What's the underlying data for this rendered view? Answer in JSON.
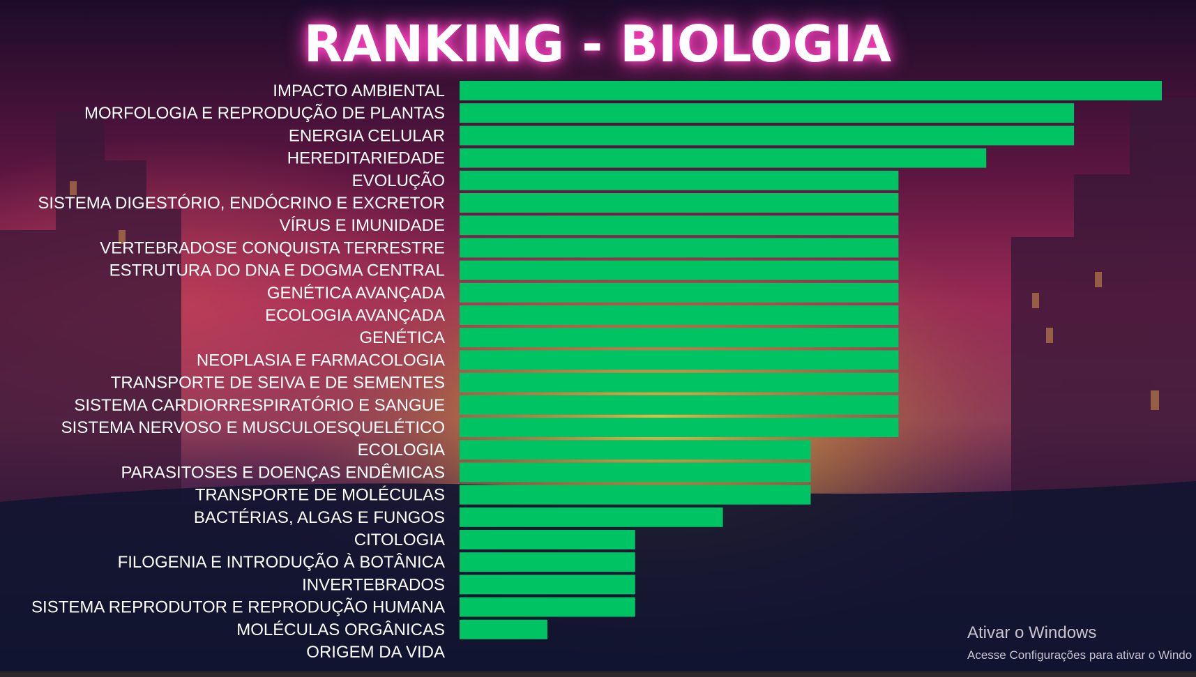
{
  "chart_data": {
    "type": "bar",
    "orientation": "horizontal",
    "title": "RANKING - BIOLOGIA",
    "categories": [
      "IMPACTO AMBIENTAL",
      "MORFOLOGIA E REPRODUÇÃO DE PLANTAS",
      "ENERGIA CELULAR",
      "HEREDITARIEDADE",
      "EVOLUÇÃO",
      "SISTEMA DIGESTÓRIO, ENDÓCRINO E EXCRETOR",
      "VÍRUS E IMUNIDADE",
      "VERTEBRADOSE CONQUISTA TERRESTRE",
      "ESTRUTURA DO DNA E DOGMA CENTRAL",
      "GENÉTICA AVANÇADA",
      "ECOLOGIA AVANÇADA",
      "GENÉTICA",
      "NEOPLASIA E FARMACOLOGIA",
      "TRANSPORTE DE SEIVA E DE SEMENTES",
      "SISTEMA CARDIORRESPIRATÓRIO E SANGUE",
      "SISTEMA NERVOSO E MUSCULOESQUELÉTICO",
      "ECOLOGIA",
      "PARASITOSES E DOENÇAS ENDÊMICAS",
      "TRANSPORTE DE MOLÉCULAS",
      "BACTÉRIAS, ALGAS E FUNGOS",
      "CITOLOGIA",
      "FILOGENIA E INTRODUÇÃO À BOTÂNICA",
      "INVERTEBRADOS",
      "SISTEMA REPRODUTOR E REPRODUÇÃO HUMANA",
      "MOLÉCULAS ORGÂNICAS",
      "ORIGEM DA VIDA"
    ],
    "values": [
      8,
      7,
      7,
      6,
      5,
      5,
      5,
      5,
      5,
      5,
      5,
      5,
      5,
      5,
      5,
      5,
      4,
      4,
      4,
      3,
      2,
      2,
      2,
      2,
      1,
      0
    ],
    "xlim": [
      0,
      8
    ],
    "grid": false,
    "legend": "none",
    "bar_color": "#00c463"
  },
  "watermark": {
    "title": "Ativar o Windows",
    "subtitle": "Acesse Configurações para ativar o Windo"
  },
  "colors": {
    "title_glow": "#ff3fbf",
    "background_top": "#2a0f3a",
    "background_mid": "#7a1f4a",
    "background_bottom": "#0e1030"
  }
}
